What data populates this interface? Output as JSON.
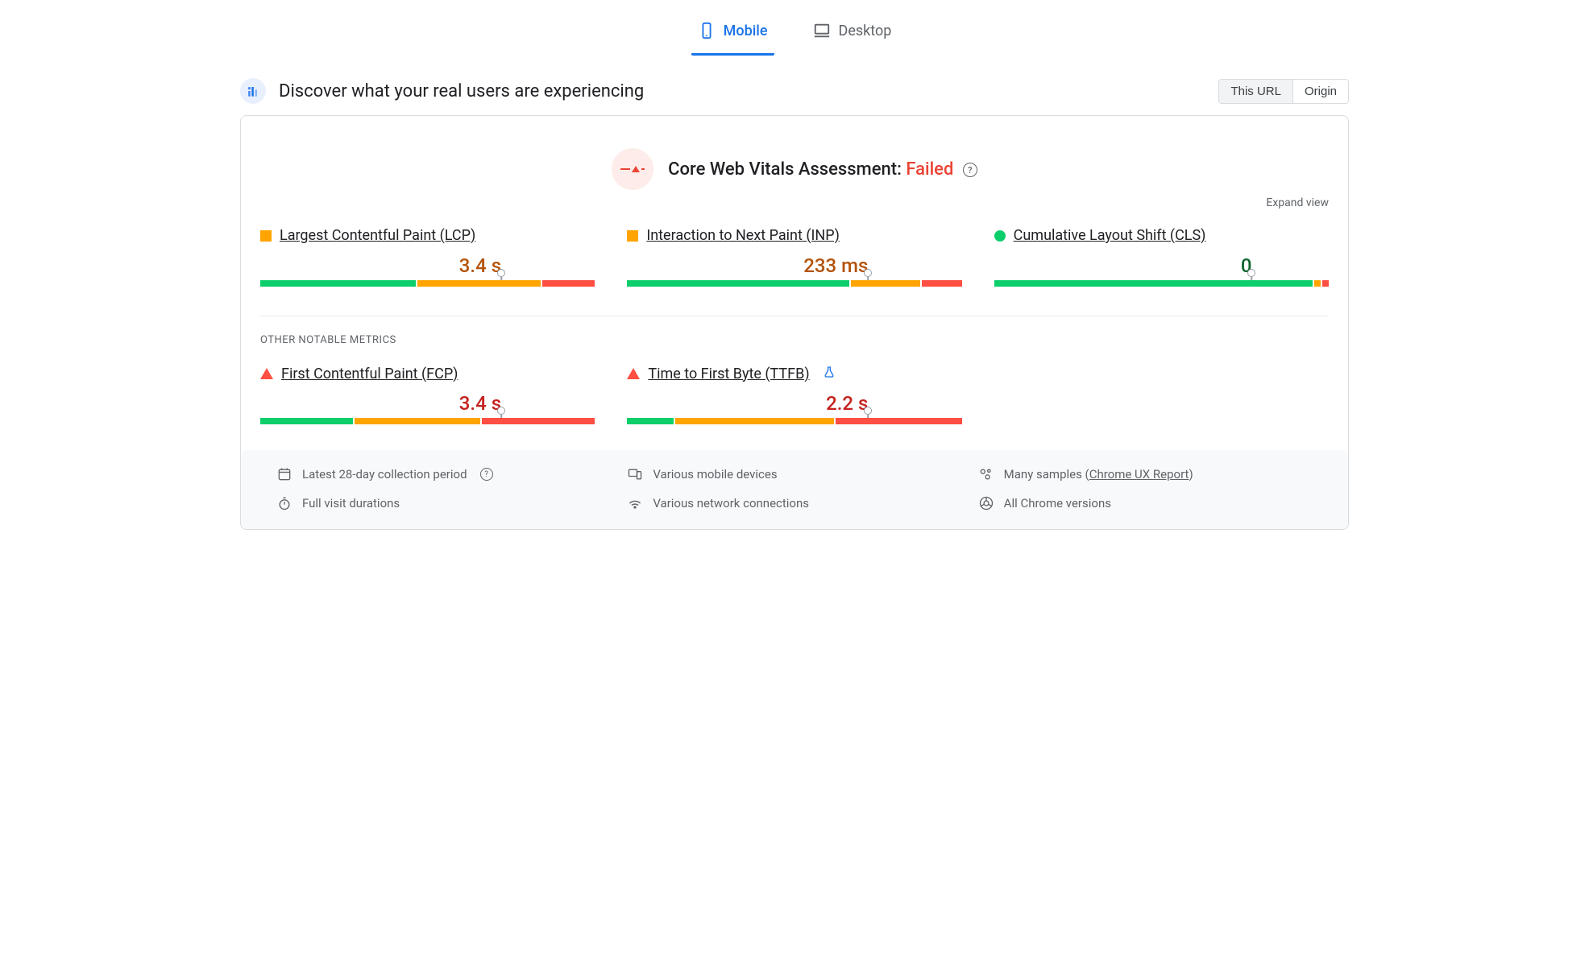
{
  "colors": {
    "good": "#0cce6b",
    "avg": "#ffa400",
    "poor": "#ff4e42",
    "good_text": "#0d652d",
    "avg_text": "#b45309",
    "poor_text": "#c5221f",
    "blue": "#1a73e8",
    "grey": "#5f6368",
    "panel_border": "#dadce0",
    "footer_bg": "#f8f9fa"
  },
  "tabs": {
    "mobile": "Mobile",
    "desktop": "Desktop",
    "active": "mobile"
  },
  "header": {
    "title": "Discover what your real users are experiencing",
    "scope": {
      "this_url": "This URL",
      "origin": "Origin",
      "active": "this_url"
    }
  },
  "assessment": {
    "label": "Core Web Vitals Assessment: ",
    "status": "Failed",
    "status_color": "#ea4335"
  },
  "expand_label": "Expand view",
  "core_metrics": [
    {
      "id": "lcp",
      "name": "Largest Contentful Paint (LCP)",
      "shape": "square",
      "status_color": "#ffa400",
      "value": "3.4 s",
      "value_color": "#b45309",
      "dist": {
        "good": 47,
        "avg": 37,
        "poor": 16
      },
      "marker_pct": 72
    },
    {
      "id": "inp",
      "name": "Interaction to Next Paint (INP)",
      "shape": "square",
      "status_color": "#ffa400",
      "value": "233 ms",
      "value_color": "#b45309",
      "dist": {
        "good": 67,
        "avg": 21,
        "poor": 12
      },
      "marker_pct": 72
    },
    {
      "id": "cls",
      "name": "Cumulative Layout Shift (CLS)",
      "shape": "circle",
      "status_color": "#0cce6b",
      "value": "0",
      "value_color": "#0d652d",
      "dist": {
        "good": 96,
        "avg": 2,
        "poor": 2
      },
      "marker_pct": 77
    }
  ],
  "other_label": "OTHER NOTABLE METRICS",
  "other_metrics": [
    {
      "id": "fcp",
      "name": "First Contentful Paint (FCP)",
      "shape": "triangle",
      "status_color": "#ff4e42",
      "value": "3.4 s",
      "value_color": "#c5221f",
      "dist": {
        "good": 28,
        "avg": 38,
        "poor": 34
      },
      "marker_pct": 72,
      "experimental": false
    },
    {
      "id": "ttfb",
      "name": "Time to First Byte (TTFB)",
      "shape": "triangle",
      "status_color": "#ff4e42",
      "value": "2.2 s",
      "value_color": "#c5221f",
      "dist": {
        "good": 14,
        "avg": 48,
        "poor": 38
      },
      "marker_pct": 72,
      "experimental": true
    }
  ],
  "footer": {
    "period": "Latest 28-day collection period",
    "devices": "Various mobile devices",
    "samples_prefix": "Many samples (",
    "samples_link": "Chrome UX Report",
    "samples_suffix": ")",
    "visit": "Full visit durations",
    "network": "Various network connections",
    "versions": "All Chrome versions"
  }
}
